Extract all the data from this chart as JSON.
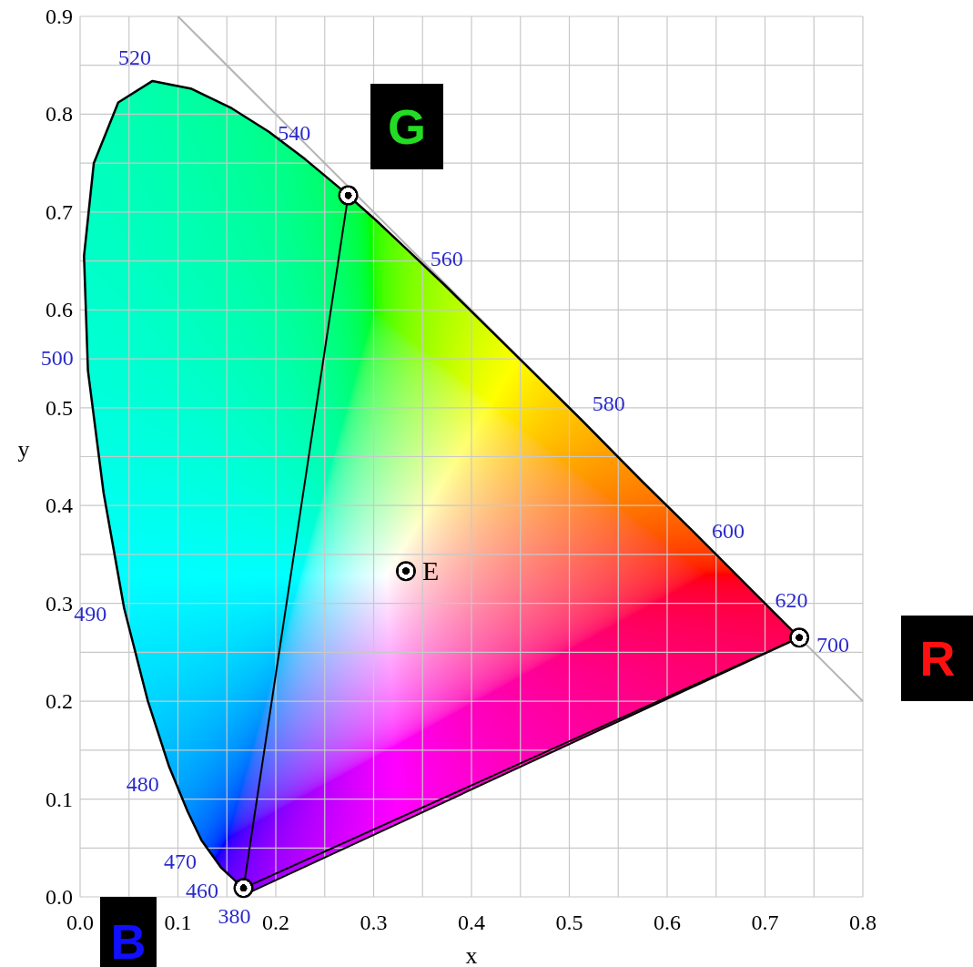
{
  "chart_data": {
    "type": "line",
    "xlabel": "x",
    "ylabel": "y",
    "xlim": [
      0,
      0.8
    ],
    "ylim": [
      0,
      0.9
    ],
    "xticks": [
      {
        "value": 0,
        "label": "0.0"
      },
      {
        "value": 0.05,
        "label": null
      },
      0.1,
      {
        "value": 0.15,
        "label": null
      },
      0.2,
      {
        "value": 0.25,
        "label": null
      },
      0.3,
      {
        "value": 0.35,
        "label": null
      },
      0.4,
      {
        "value": 0.45,
        "label": null
      },
      0.5,
      {
        "value": 0.55,
        "label": null
      },
      0.6,
      {
        "value": 0.65,
        "label": null
      },
      0.7,
      {
        "value": 0.75,
        "label": null
      },
      0.8
    ],
    "yticks": [
      {
        "value": 0,
        "label": "0.0"
      },
      {
        "value": 0.05,
        "label": null
      },
      0.1,
      {
        "value": 0.15,
        "label": null
      },
      0.2,
      {
        "value": 0.25,
        "label": null
      },
      0.3,
      {
        "value": 0.35,
        "label": null
      },
      0.4,
      {
        "value": 0.45,
        "label": null
      },
      0.5,
      {
        "value": 0.55,
        "label": null
      },
      0.6,
      {
        "value": 0.65,
        "label": null
      },
      0.7,
      {
        "value": 0.75,
        "label": null
      },
      0.8,
      {
        "value": 0.85,
        "label": null
      },
      0.9
    ],
    "grid": true,
    "marker": "none",
    "line_style": "solid",
    "series": [
      {
        "color": "#b4b4b4",
        "x": [
          0.1,
          0.8
        ],
        "values": [
          0.9,
          0.2
        ]
      },
      {
        "color": "#000000",
        "x": [
          0.174,
          0.173,
          0.171,
          0.164,
          0.157,
          0.144,
          0.124,
          0.11,
          0.091,
          0.069,
          0.045,
          0.024,
          0.008,
          0.004,
          0.014,
          0.039,
          0.074,
          0.114,
          0.155,
          0.193,
          0.23,
          0.266,
          0.302,
          0.337,
          0.373,
          0.444,
          0.513,
          0.575,
          0.627,
          0.666,
          0.692,
          0.708,
          0.719,
          0.726,
          0.73,
          0.735
        ],
        "values": [
          0.005,
          0.005,
          0.005,
          0.011,
          0.018,
          0.03,
          0.058,
          0.087,
          0.133,
          0.201,
          0.295,
          0.413,
          0.538,
          0.655,
          0.75,
          0.812,
          0.834,
          0.826,
          0.806,
          0.782,
          0.754,
          0.724,
          0.692,
          0.659,
          0.625,
          0.555,
          0.487,
          0.424,
          0.373,
          0.334,
          0.308,
          0.292,
          0.281,
          0.274,
          0.27,
          0.265
        ]
      },
      {
        "color": "#000000",
        "x": [
          0.274,
          0.167,
          0.735
        ],
        "values": [
          0.717,
          0.009,
          0.265
        ]
      },
      {
        "color": "#000000",
        "x": [
          0.174,
          0.735
        ],
        "values": [
          0.005,
          0.265
        ]
      },
      {
        "type": "scatter",
        "color": "#000000",
        "marker": "circle",
        "x": [
          0.735,
          0.274,
          0.167,
          0.333
        ],
        "values": [
          0.265,
          0.717,
          0.009,
          0.333
        ]
      }
    ],
    "annotations": [
      {
        "text": "380",
        "x": 0.174,
        "y": 0.005
      },
      {
        "text": "460",
        "x": 0.144,
        "y": 0.03
      },
      {
        "text": "470",
        "x": 0.124,
        "y": 0.058
      },
      {
        "text": "480",
        "x": 0.091,
        "y": 0.133
      },
      {
        "text": "490",
        "x": 0.045,
        "y": 0.295
      },
      {
        "text": "500",
        "x": 0.008,
        "y": 0.538
      },
      {
        "text": "520",
        "x": 0.074,
        "y": 0.834
      },
      {
        "text": "540",
        "x": 0.23,
        "y": 0.754
      },
      {
        "text": "560",
        "x": 0.373,
        "y": 0.625
      },
      {
        "text": "580",
        "x": 0.513,
        "y": 0.487
      },
      {
        "text": "600",
        "x": 0.627,
        "y": 0.373
      },
      {
        "text": "620",
        "x": 0.692,
        "y": 0.308
      },
      {
        "text": "700",
        "x": 0.735,
        "y": 0.265
      },
      {
        "text": "E",
        "x": 0.333,
        "y": 0.333
      },
      "G",
      "R",
      "B"
    ]
  }
}
